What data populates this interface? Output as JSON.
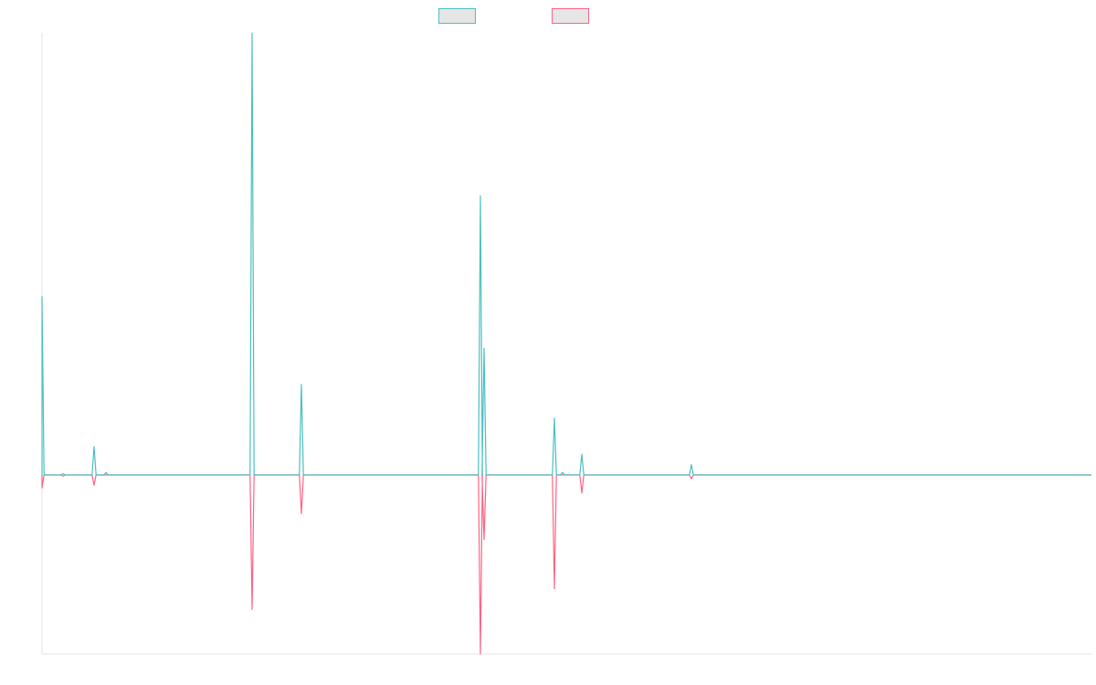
{
  "chart_data": {
    "type": "line",
    "title": "",
    "xlabel": "",
    "ylabel": "",
    "x_range": [
      0,
      1150
    ],
    "y_range": [
      -1.0,
      1.4
    ],
    "grid": false,
    "legend_position": "top-center",
    "series": [
      {
        "color": "#4bc0c0",
        "fill": "#e6e6e6",
        "peaks": [
          {
            "x": 0,
            "y": 0.69
          },
          {
            "x": 23,
            "y": 0.005
          },
          {
            "x": 57,
            "y": 0.11
          },
          {
            "x": 70,
            "y": 0.01
          },
          {
            "x": 230,
            "y": 1.71
          },
          {
            "x": 284,
            "y": 0.35
          },
          {
            "x": 480,
            "y": 1.08
          },
          {
            "x": 484,
            "y": 0.49
          },
          {
            "x": 561,
            "y": 0.22
          },
          {
            "x": 570,
            "y": 0.01
          },
          {
            "x": 591,
            "y": 0.08
          },
          {
            "x": 711,
            "y": 0.04
          }
        ]
      },
      {
        "color": "#ff6384",
        "fill": "#e6e6e6",
        "peaks": [
          {
            "x": 0,
            "y": -0.05
          },
          {
            "x": 23,
            "y": -0.005
          },
          {
            "x": 57,
            "y": -0.04
          },
          {
            "x": 230,
            "y": -0.52
          },
          {
            "x": 284,
            "y": -0.15
          },
          {
            "x": 480,
            "y": -0.7
          },
          {
            "x": 484,
            "y": -0.25
          },
          {
            "x": 561,
            "y": -0.44
          },
          {
            "x": 591,
            "y": -0.07
          },
          {
            "x": 711,
            "y": -0.015
          }
        ]
      }
    ]
  }
}
